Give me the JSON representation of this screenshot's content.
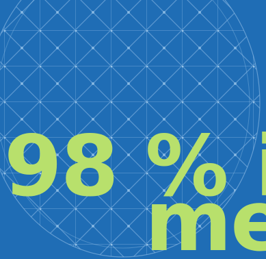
{
  "headline": {
    "line1": "98 % i",
    "line2": "me"
  }
}
